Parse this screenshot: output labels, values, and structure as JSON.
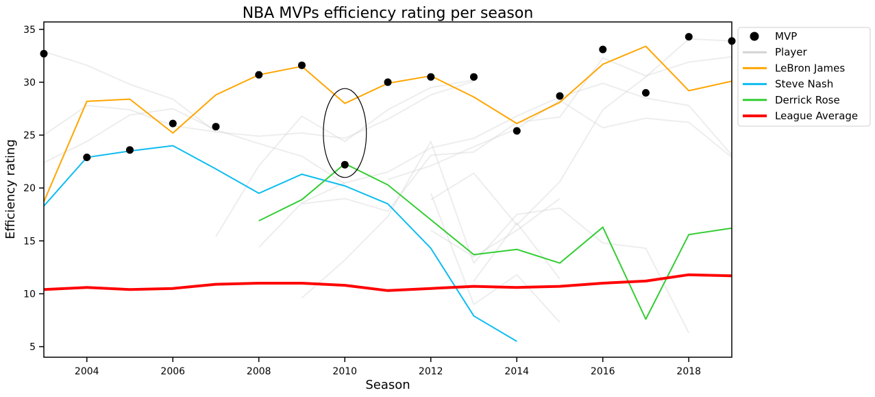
{
  "chart_data": {
    "type": "line",
    "title": "NBA MVPs efficiency rating per season",
    "xlabel": "Season",
    "ylabel": "Efficiency rating",
    "xlim": [
      2003,
      2019
    ],
    "ylim": [
      4,
      35.7
    ],
    "xticks": [
      2004,
      2006,
      2008,
      2010,
      2012,
      2014,
      2016,
      2018
    ],
    "yticks": [
      5,
      10,
      15,
      20,
      25,
      30,
      35
    ],
    "grid": false,
    "legend_position": "outside-top-right",
    "mvp": {
      "name": "MVP",
      "color": "#000000",
      "points": [
        {
          "x": 2003,
          "y": 32.7
        },
        {
          "x": 2004,
          "y": 22.9
        },
        {
          "x": 2005,
          "y": 23.6
        },
        {
          "x": 2006,
          "y": 26.1
        },
        {
          "x": 2007,
          "y": 25.8
        },
        {
          "x": 2008,
          "y": 30.7
        },
        {
          "x": 2009,
          "y": 31.6
        },
        {
          "x": 2010,
          "y": 22.2
        },
        {
          "x": 2011,
          "y": 30.0
        },
        {
          "x": 2012,
          "y": 30.5
        },
        {
          "x": 2013,
          "y": 30.5
        },
        {
          "x": 2014,
          "y": 25.4
        },
        {
          "x": 2015,
          "y": 28.7
        },
        {
          "x": 2016,
          "y": 33.1
        },
        {
          "x": 2017,
          "y": 29.0
        },
        {
          "x": 2018,
          "y": 34.3
        },
        {
          "x": 2019,
          "y": 33.9
        }
      ]
    },
    "player_lines_label": "Player",
    "player_lines_color": "#d3d3d3",
    "player_lines": [
      [
        [
          2003,
          32.9
        ],
        [
          2004,
          31.6
        ],
        [
          2005,
          29.8
        ],
        [
          2006,
          28.4
        ],
        [
          2007,
          25.3
        ]
      ],
      [
        [
          2003,
          22.4
        ],
        [
          2004,
          24.4
        ],
        [
          2005,
          26.9
        ],
        [
          2006,
          27.5
        ],
        [
          2007,
          25.5
        ],
        [
          2008,
          24.2
        ],
        [
          2009,
          23.0
        ],
        [
          2010,
          20.4
        ]
      ],
      [
        [
          2003,
          25.0
        ],
        [
          2004,
          27.8
        ],
        [
          2005,
          27.4
        ],
        [
          2006,
          25.9
        ],
        [
          2007,
          25.3
        ],
        [
          2008,
          24.9
        ],
        [
          2009,
          25.2
        ],
        [
          2010,
          24.7
        ],
        [
          2011,
          26.5
        ],
        [
          2012,
          28.8
        ],
        [
          2013,
          30.1
        ]
      ],
      [
        [
          2007,
          15.4
        ],
        [
          2008,
          22.1
        ],
        [
          2009,
          26.8
        ],
        [
          2010,
          24.4
        ],
        [
          2011,
          27.4
        ],
        [
          2012,
          29.5
        ],
        [
          2013,
          30.2
        ]
      ],
      [
        [
          2008,
          14.4
        ],
        [
          2009,
          18.6
        ],
        [
          2010,
          20.5
        ],
        [
          2011,
          21.5
        ],
        [
          2012,
          23.8
        ],
        [
          2013,
          24.7
        ],
        [
          2014,
          26.8
        ],
        [
          2015,
          28.6
        ],
        [
          2016,
          29.9
        ],
        [
          2017,
          28.5
        ],
        [
          2018,
          27.8
        ],
        [
          2019,
          23.1
        ]
      ],
      [
        [
          2009,
          9.6
        ],
        [
          2010,
          13.2
        ],
        [
          2011,
          17.3
        ],
        [
          2012,
          24.4
        ],
        [
          2013,
          12.9
        ],
        [
          2014,
          17.5
        ],
        [
          2015,
          18.1
        ],
        [
          2016,
          14.8
        ],
        [
          2017,
          14.3
        ],
        [
          2018,
          6.3
        ]
      ],
      [
        [
          2009,
          18.5
        ],
        [
          2010,
          19.0
        ],
        [
          2011,
          17.8
        ],
        [
          2012,
          23.1
        ],
        [
          2013,
          23.4
        ],
        [
          2014,
          26.2
        ],
        [
          2015,
          26.7
        ],
        [
          2016,
          32.3
        ],
        [
          2017,
          30.6
        ],
        [
          2018,
          31.9
        ],
        [
          2019,
          32.4
        ]
      ],
      [
        [
          2012,
          18.9
        ],
        [
          2013,
          21.4
        ],
        [
          2014,
          16.5
        ],
        [
          2015,
          20.6
        ],
        [
          2016,
          27.4
        ],
        [
          2017,
          30.5
        ],
        [
          2018,
          34.1
        ],
        [
          2019,
          33.9
        ]
      ],
      [
        [
          2011,
          20.8
        ],
        [
          2012,
          22.1
        ],
        [
          2013,
          23.9
        ],
        [
          2014,
          25.6
        ],
        [
          2015,
          28.3
        ],
        [
          2016,
          25.7
        ],
        [
          2017,
          26.6
        ],
        [
          2018,
          26.2
        ],
        [
          2019,
          22.9
        ]
      ],
      [
        [
          2012,
          19.5
        ],
        [
          2013,
          9.0
        ],
        [
          2014,
          11.8
        ],
        [
          2015,
          7.3
        ]
      ],
      [
        [
          2013,
          11.2
        ],
        [
          2014,
          16.7
        ],
        [
          2015,
          11.4
        ]
      ],
      [
        [
          2012,
          16.0
        ],
        [
          2013,
          13.5
        ],
        [
          2014,
          16.0
        ],
        [
          2015,
          19.0
        ]
      ]
    ],
    "series": [
      {
        "name": "LeBron James",
        "color": "#ffa500",
        "points": [
          [
            2003,
            18.7
          ],
          [
            2004,
            28.2
          ],
          [
            2005,
            28.4
          ],
          [
            2006,
            25.2
          ],
          [
            2007,
            28.8
          ],
          [
            2008,
            30.7
          ],
          [
            2009,
            31.5
          ],
          [
            2010,
            28.0
          ],
          [
            2011,
            29.9
          ],
          [
            2012,
            30.6
          ],
          [
            2013,
            28.6
          ],
          [
            2014,
            26.1
          ],
          [
            2015,
            28.1
          ],
          [
            2016,
            31.7
          ],
          [
            2017,
            33.4
          ],
          [
            2018,
            29.2
          ],
          [
            2019,
            30.1
          ]
        ]
      },
      {
        "name": "Steve Nash",
        "color": "#0cbcf0",
        "points": [
          [
            2003,
            18.3
          ],
          [
            2004,
            22.9
          ],
          [
            2005,
            23.5
          ],
          [
            2006,
            24.0
          ],
          [
            2007,
            21.8
          ],
          [
            2008,
            19.5
          ],
          [
            2009,
            21.3
          ],
          [
            2010,
            20.2
          ],
          [
            2011,
            18.5
          ],
          [
            2012,
            14.3
          ],
          [
            2013,
            7.9
          ],
          [
            2014,
            5.5
          ]
        ]
      },
      {
        "name": "Derrick Rose",
        "color": "#32cd32",
        "points": [
          [
            2008,
            16.9
          ],
          [
            2009,
            18.9
          ],
          [
            2010,
            22.3
          ],
          [
            2011,
            20.3
          ],
          [
            2012,
            17.0
          ],
          [
            2013,
            13.7
          ],
          [
            2014,
            14.2
          ],
          [
            2015,
            12.9
          ],
          [
            2016,
            16.3
          ],
          [
            2017,
            7.6
          ],
          [
            2018,
            15.6
          ],
          [
            2019,
            16.2
          ]
        ]
      },
      {
        "name": "League Average",
        "color": "#ff0000",
        "points": [
          [
            2003,
            10.4
          ],
          [
            2004,
            10.6
          ],
          [
            2005,
            10.4
          ],
          [
            2006,
            10.5
          ],
          [
            2007,
            10.9
          ],
          [
            2008,
            11.0
          ],
          [
            2009,
            11.0
          ],
          [
            2010,
            10.8
          ],
          [
            2011,
            10.3
          ],
          [
            2012,
            10.5
          ],
          [
            2013,
            10.7
          ],
          [
            2014,
            10.6
          ],
          [
            2015,
            10.7
          ],
          [
            2016,
            11.0
          ],
          [
            2017,
            11.2
          ],
          [
            2018,
            11.8
          ],
          [
            2019,
            11.7
          ]
        ]
      }
    ],
    "annotation": {
      "shape": "ellipse",
      "color": "#000000",
      "cx": 2010,
      "cy": 25.2,
      "rx": 0.5,
      "ry": 4.2
    }
  }
}
